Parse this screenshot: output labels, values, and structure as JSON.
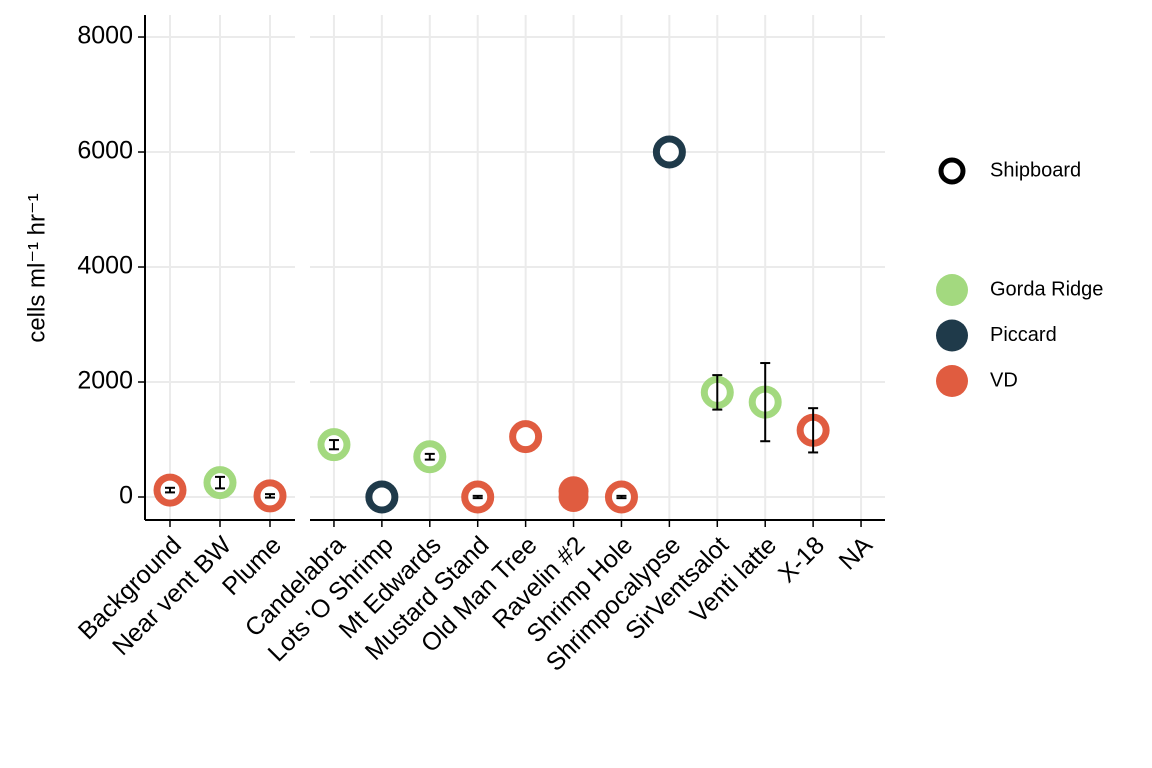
{
  "chart_data": {
    "type": "scatter",
    "y_label": "cells ml⁻¹ hr⁻¹",
    "ylim": [
      -400,
      8383
    ],
    "yticks": [
      0,
      2000,
      4000,
      6000,
      8000
    ],
    "grid": true,
    "panels": [
      {
        "categories": [
          "Background",
          "Near vent BW",
          "Plume"
        ]
      },
      {
        "categories": [
          "Candelabra",
          "Lots 'O Shrimp",
          "Mt Edwards",
          "Mustard Stand",
          "Old Man Tree",
          "Ravelin #2",
          "Shrimp Hole",
          "Shrimpocalypse",
          "SirVentsalot",
          "Venti latte",
          "X-18",
          "NA"
        ]
      }
    ],
    "shape_legend": {
      "name": "Shipboard"
    },
    "series": [
      {
        "name": "Gorda Ridge",
        "color": "#a3d97f",
        "panel": [
          0,
          1,
          1,
          1,
          1
        ],
        "x": [
          "Near vent BW",
          "Candelabra",
          "Mt Edwards",
          "SirVentsalot",
          "Venti latte"
        ],
        "values": [
          250,
          910,
          700,
          1820,
          1650
        ],
        "errors": [
          100,
          80,
          50,
          300,
          680
        ],
        "shipboard": [
          true,
          true,
          true,
          true,
          true
        ]
      },
      {
        "name": "Piccard",
        "color": "#1f3a4a",
        "panel": [
          0,
          1,
          1
        ],
        "x": [
          "Plume",
          "Lots 'O Shrimp",
          "Shrimpocalypse"
        ],
        "values": [
          30,
          0,
          6000
        ],
        "errors": [
          40,
          null,
          null
        ],
        "shipboard": [
          false,
          true,
          true
        ]
      },
      {
        "name": "VD",
        "color": "#e05c40",
        "panel": [
          0,
          0,
          1,
          1,
          1,
          1,
          1,
          1
        ],
        "x": [
          "Background",
          "Plume",
          "Mustard Stand",
          "Old Man Tree",
          "Ravelin #2",
          "Ravelin #2",
          "Shrimp Hole",
          "X-18"
        ],
        "values": [
          120,
          20,
          0,
          1050,
          100,
          0,
          0,
          1160
        ],
        "errors": [
          40,
          30,
          20,
          null,
          20,
          null,
          20,
          385
        ],
        "shipboard": [
          true,
          true,
          true,
          true,
          false,
          false,
          true,
          true
        ]
      }
    ]
  }
}
